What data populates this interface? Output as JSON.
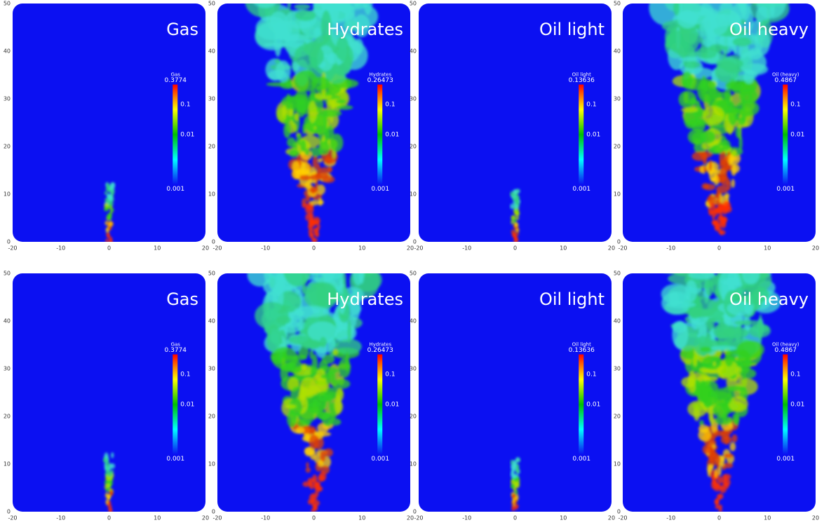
{
  "axes": {
    "xticks": [
      -20,
      -10,
      0,
      10,
      20
    ],
    "yticks": [
      0,
      10,
      20,
      30,
      40,
      50
    ]
  },
  "colorbar_ticks": [
    0.1,
    0.01,
    0.001
  ],
  "panels": [
    {
      "title": "Gas",
      "colorbar_title": "Gas",
      "colorbar_max": 0.3774
    },
    {
      "title": "Hydrates",
      "colorbar_title": "Hydrates",
      "colorbar_max": 0.26473
    },
    {
      "title": "Oil light",
      "colorbar_title": "Oil light",
      "colorbar_max": 0.13636
    },
    {
      "title": "Oil heavy",
      "colorbar_title": "Oil (heavy)",
      "colorbar_max": 0.4867
    },
    {
      "title": "Gas",
      "colorbar_title": "Gas",
      "colorbar_max": 0.3774
    },
    {
      "title": "Hydrates",
      "colorbar_title": "Hydrates",
      "colorbar_max": 0.26473
    },
    {
      "title": "Oil light",
      "colorbar_title": "Oil light",
      "colorbar_max": 0.13636
    },
    {
      "title": "Oil heavy",
      "colorbar_title": "Oil (heavy)",
      "colorbar_max": 0.4867
    }
  ]
}
